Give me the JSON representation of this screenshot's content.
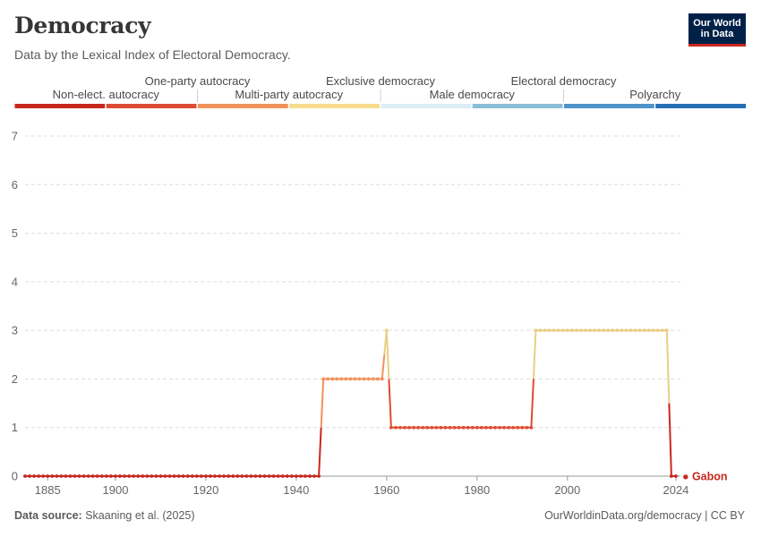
{
  "header": {
    "title": "Democracy",
    "subtitle": "Data by the Lexical Index of Electoral Democracy."
  },
  "logo": {
    "line1": "Our World",
    "line2": "in Data"
  },
  "footer": {
    "source_label": "Data source:",
    "source_text": "Skaaning et al. (2025)",
    "url": "OurWorldinData.org/democracy | CC BY"
  },
  "chart_data": {
    "type": "line",
    "entity": "Gabon",
    "x_ticks": [
      1885,
      1900,
      1920,
      1940,
      1960,
      1980,
      2000,
      2024
    ],
    "y_ticks": [
      0,
      1,
      2,
      3,
      4,
      5,
      6,
      7
    ],
    "xlim": [
      1880,
      2025
    ],
    "ylim": [
      0,
      7
    ],
    "grid": true,
    "legend": {
      "placement": "top",
      "categories": [
        {
          "label": "Non-elect. autocracy",
          "color": "#c8281f"
        },
        {
          "label": "One-party autocracy",
          "color": "#df4c34"
        },
        {
          "label": "Multi-party autocracy",
          "color": "#f0935b"
        },
        {
          "label": "Exclusive democracy",
          "color": "#f7dc8c"
        },
        {
          "label": "Male democracy",
          "color": "#dcedf6"
        },
        {
          "label": "Electoral democracy",
          "color": "#8cbdd8"
        },
        {
          "label": "Polyarchy",
          "color": "#4e94c8"
        },
        {
          "label": "",
          "color": "#2570b5"
        }
      ]
    },
    "segments": [
      {
        "from": 1880,
        "to": 1945,
        "value": 0
      },
      {
        "from": 1946,
        "to": 1959,
        "value": 2
      },
      {
        "from": 1960,
        "to": 1960,
        "value": 3
      },
      {
        "from": 1961,
        "to": 1992,
        "value": 1
      },
      {
        "from": 1993,
        "to": 2022,
        "value": 3
      },
      {
        "from": 2023,
        "to": 2024,
        "value": 0
      }
    ]
  }
}
